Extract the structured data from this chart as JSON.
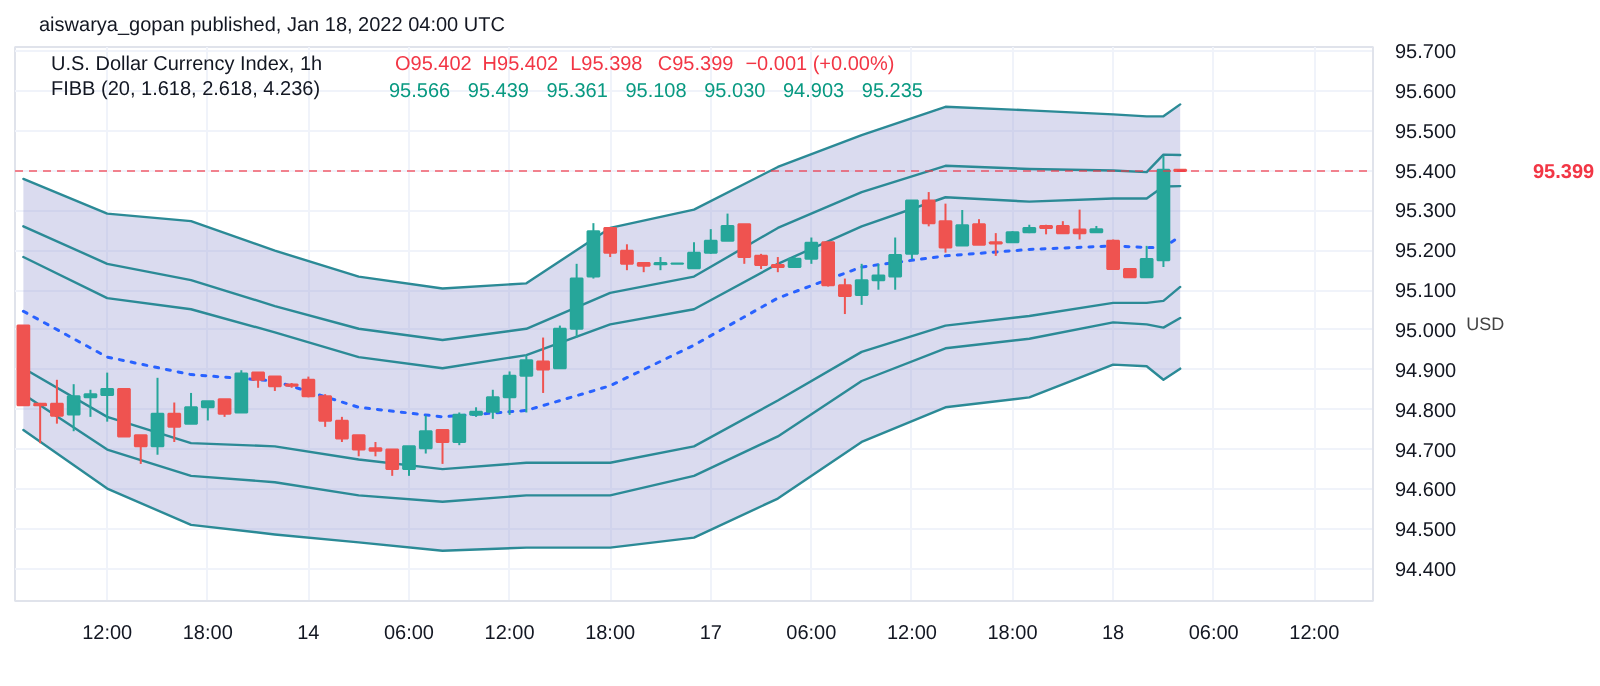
{
  "chart_data": {
    "type": "candlestick",
    "title": "U.S. Dollar Currency Index, 1h",
    "annotations": [
      "aiswarya_gopan published, Jan 18, 2022 04:00 UTC",
      "O95.402",
      "H95.402",
      "L95.398",
      "C95.399",
      "−0.001 (+0.00%)",
      "FIBB (20, 1.618, 2.618, 4.236)",
      "95.566",
      "95.439",
      "95.361",
      "95.108",
      "95.030",
      "94.903",
      "95.235"
    ],
    "ylabel": "USD",
    "categories": [
      null,
      null,
      null,
      null,
      null,
      "12:00",
      null,
      null,
      null,
      null,
      null,
      "18:00",
      null,
      null,
      null,
      null,
      null,
      "14",
      null,
      null,
      null,
      null,
      null,
      "06:00",
      null,
      null,
      null,
      null,
      null,
      "12:00",
      null,
      null,
      null,
      null,
      null,
      "18:00",
      null,
      null,
      null,
      null,
      null,
      "17",
      null,
      null,
      null,
      null,
      null,
      "06:00",
      null,
      null,
      null,
      null,
      null,
      "12:00",
      null,
      null,
      null,
      null,
      null,
      "18:00",
      null,
      null,
      null,
      null,
      null,
      "18",
      null,
      null,
      null,
      null,
      null,
      "06:00",
      null,
      null,
      null,
      null,
      null,
      "12:00",
      null,
      null,
      null
    ],
    "ohlc": [
      [
        95.011,
        95.011,
        94.811,
        94.811
      ],
      [
        94.815,
        94.817,
        94.716,
        94.811
      ],
      [
        94.815,
        94.875,
        94.765,
        94.785
      ],
      [
        94.788,
        94.864,
        94.746,
        94.834
      ],
      [
        94.831,
        94.85,
        94.782,
        94.839
      ],
      [
        94.837,
        94.893,
        94.77,
        94.852
      ],
      [
        94.852,
        94.852,
        94.733,
        94.733
      ],
      [
        94.736,
        94.736,
        94.664,
        94.708
      ],
      [
        94.708,
        94.88,
        94.687,
        94.79
      ],
      [
        94.79,
        94.818,
        94.719,
        94.757
      ],
      [
        94.765,
        94.842,
        94.765,
        94.806
      ],
      [
        94.806,
        94.821,
        94.773,
        94.821
      ],
      [
        94.826,
        94.826,
        94.782,
        94.79
      ],
      [
        94.793,
        94.899,
        94.793,
        94.891
      ],
      [
        94.893,
        94.893,
        94.855,
        94.875
      ],
      [
        94.883,
        94.883,
        94.847,
        94.859
      ],
      [
        94.863,
        94.867,
        94.855,
        94.86
      ],
      [
        94.875,
        94.883,
        94.831,
        94.834
      ],
      [
        94.834,
        94.839,
        94.757,
        94.772
      ],
      [
        94.772,
        94.782,
        94.719,
        94.728
      ],
      [
        94.736,
        94.736,
        94.683,
        94.7
      ],
      [
        94.703,
        94.719,
        94.683,
        94.697
      ],
      [
        94.7,
        94.7,
        94.634,
        94.651
      ],
      [
        94.651,
        94.708,
        94.634,
        94.708
      ],
      [
        94.703,
        94.785,
        94.69,
        94.746
      ],
      [
        94.749,
        94.749,
        94.664,
        94.719
      ],
      [
        94.719,
        94.793,
        94.711,
        94.787
      ],
      [
        94.787,
        94.806,
        94.782,
        94.795
      ],
      [
        94.795,
        94.85,
        94.777,
        94.831
      ],
      [
        94.831,
        94.896,
        94.787,
        94.885
      ],
      [
        94.885,
        94.937,
        94.793,
        94.924
      ],
      [
        94.921,
        94.981,
        94.842,
        94.901
      ],
      [
        94.904,
        95.011,
        94.904,
        95.003
      ],
      [
        95.003,
        95.166,
        94.981,
        95.129
      ],
      [
        95.134,
        95.268,
        95.129,
        95.248
      ],
      [
        95.256,
        95.256,
        95.183,
        95.194
      ],
      [
        95.199,
        95.215,
        95.15,
        95.166
      ],
      [
        95.168,
        95.168,
        95.145,
        95.161
      ],
      [
        95.165,
        95.183,
        95.15,
        95.168
      ],
      [
        95.166,
        95.167,
        95.166,
        95.167
      ],
      [
        95.155,
        95.22,
        95.155,
        95.194
      ],
      [
        95.194,
        95.253,
        95.191,
        95.224
      ],
      [
        95.224,
        95.292,
        95.224,
        95.261
      ],
      [
        95.265,
        95.265,
        95.166,
        95.183
      ],
      [
        95.186,
        95.191,
        95.153,
        95.163
      ],
      [
        95.163,
        95.183,
        95.145,
        95.158
      ],
      [
        95.158,
        95.186,
        95.158,
        95.179
      ],
      [
        95.179,
        95.232,
        95.166,
        95.219
      ],
      [
        95.22,
        95.22,
        95.109,
        95.112
      ],
      [
        95.112,
        95.129,
        95.04,
        95.085
      ],
      [
        95.088,
        95.166,
        95.063,
        95.125
      ],
      [
        95.125,
        95.166,
        95.101,
        95.137
      ],
      [
        95.134,
        95.232,
        95.101,
        95.188
      ],
      [
        95.191,
        95.325,
        95.178,
        95.325
      ],
      [
        95.325,
        95.346,
        95.26,
        95.268
      ],
      [
        95.273,
        95.317,
        95.194,
        95.207
      ],
      [
        95.212,
        95.301,
        95.211,
        95.263
      ],
      [
        95.265,
        95.278,
        95.214,
        95.214
      ],
      [
        95.22,
        95.243,
        95.186,
        95.217
      ],
      [
        95.22,
        95.248,
        95.22,
        95.245
      ],
      [
        95.245,
        95.264,
        95.243,
        95.256
      ],
      [
        95.261,
        95.264,
        95.24,
        95.256
      ],
      [
        95.261,
        95.273,
        95.243,
        95.243
      ],
      [
        95.252,
        95.302,
        95.227,
        95.243
      ],
      [
        95.245,
        95.261,
        95.245,
        95.253
      ],
      [
        95.224,
        95.227,
        95.153,
        95.153
      ],
      [
        95.153,
        95.153,
        95.132,
        95.132
      ],
      [
        95.132,
        95.211,
        95.132,
        95.178
      ],
      [
        95.175,
        95.437,
        95.158,
        95.402
      ],
      [
        95.402,
        95.402,
        95.398,
        95.399
      ],
      null,
      null,
      null,
      null,
      null,
      null,
      null,
      null,
      null,
      null,
      null
    ],
    "colors": [
      "#ef5350",
      "#ef5350",
      "#ef5350",
      "#26a69a",
      "#26a69a",
      "#26a69a",
      "#ef5350",
      "#ef5350",
      "#26a69a",
      "#ef5350",
      "#26a69a",
      "#26a69a",
      "#ef5350",
      "#26a69a",
      "#ef5350",
      "#ef5350",
      "#ef5350",
      "#ef5350",
      "#ef5350",
      "#ef5350",
      "#ef5350",
      "#ef5350",
      "#ef5350",
      "#26a69a",
      "#26a69a",
      "#ef5350",
      "#26a69a",
      "#26a69a",
      "#26a69a",
      "#26a69a",
      "#26a69a",
      "#ef5350",
      "#26a69a",
      "#26a69a",
      "#26a69a",
      "#ef5350",
      "#ef5350",
      "#ef5350",
      "#26a69a",
      "#26a69a",
      "#26a69a",
      "#26a69a",
      "#26a69a",
      "#ef5350",
      "#ef5350",
      "#ef5350",
      "#26a69a",
      "#26a69a",
      "#ef5350",
      "#ef5350",
      "#26a69a",
      "#26a69a",
      "#26a69a",
      "#26a69a",
      "#ef5350",
      "#ef5350",
      "#26a69a",
      "#ef5350",
      "#ef5350",
      "#26a69a",
      "#26a69a",
      "#ef5350",
      "#ef5350",
      "#ef5350",
      "#26a69a",
      "#ef5350",
      "#ef5350",
      "#26a69a",
      "#26a69a",
      "#ef5350",
      null,
      null,
      null,
      null,
      null,
      null,
      null,
      null,
      null,
      null,
      null
    ],
    "series": [
      {
        "type": "line",
        "line_style": "dotted",
        "color": "#2962ff",
        "values": [
          95.047,
          null,
          null,
          null,
          null,
          94.932,
          null,
          null,
          null,
          null,
          94.888,
          null,
          null,
          null,
          null,
          94.872,
          null,
          null,
          null,
          null,
          94.806,
          null,
          null,
          null,
          null,
          94.782,
          null,
          null,
          null,
          null,
          94.798,
          null,
          null,
          null,
          null,
          94.86,
          null,
          null,
          null,
          null,
          94.962,
          null,
          null,
          null,
          null,
          95.08,
          null,
          null,
          null,
          null,
          95.158,
          null,
          null,
          null,
          null,
          95.186,
          null,
          null,
          null,
          null,
          95.202,
          null,
          null,
          null,
          null,
          95.211,
          null,
          95.207,
          95.207,
          95.235,
          null,
          null,
          null,
          null,
          null,
          null,
          null,
          null,
          null,
          null,
          null
        ],
        "lower": [
          94.749,
          null,
          null,
          null,
          null,
          94.602,
          null,
          null,
          null,
          null,
          94.511,
          null,
          null,
          null,
          null,
          94.487,
          null,
          null,
          null,
          null,
          94.467,
          null,
          null,
          null,
          null,
          94.446,
          null,
          null,
          null,
          null,
          94.454,
          null,
          null,
          null,
          null,
          94.454,
          null,
          null,
          null,
          null,
          94.479,
          null,
          null,
          null,
          null,
          94.577,
          null,
          null,
          null,
          null,
          94.719,
          null,
          null,
          null,
          null,
          94.806,
          null,
          null,
          null,
          null,
          94.831,
          null,
          null,
          null,
          null,
          94.913,
          null,
          94.909,
          94.875,
          94.903,
          null,
          null,
          null,
          null,
          null,
          null,
          null,
          null,
          null,
          null,
          null
        ],
        "upper": [
          95.379,
          null,
          null,
          null,
          null,
          95.292,
          null,
          null,
          null,
          null,
          95.273,
          null,
          null,
          null,
          null,
          95.199,
          null,
          null,
          null,
          null,
          95.134,
          null,
          null,
          null,
          null,
          95.104,
          null,
          null,
          null,
          null,
          95.117,
          null,
          null,
          null,
          null,
          95.256,
          null,
          null,
          null,
          null,
          95.302,
          null,
          null,
          null,
          null,
          95.409,
          null,
          null,
          null,
          null,
          95.489,
          null,
          null,
          null,
          null,
          95.56,
          null,
          null,
          null,
          null,
          95.551,
          null,
          null,
          null,
          null,
          95.541,
          null,
          95.536,
          95.536,
          95.566,
          null,
          null,
          null,
          null,
          null,
          null,
          null,
          null,
          null,
          null,
          null
        ]
      },
      {
        "type": "line",
        "color": "#2b8a96",
        "values": [
          95.379,
          null,
          null,
          null,
          null,
          95.292,
          null,
          null,
          null,
          null,
          95.273,
          null,
          null,
          null,
          null,
          95.199,
          null,
          null,
          null,
          null,
          95.134,
          null,
          null,
          null,
          null,
          95.104,
          null,
          null,
          null,
          null,
          95.117,
          null,
          null,
          null,
          null,
          95.256,
          null,
          null,
          null,
          null,
          95.302,
          null,
          null,
          null,
          null,
          95.409,
          null,
          null,
          null,
          null,
          95.489,
          null,
          null,
          null,
          null,
          95.56,
          null,
          null,
          null,
          null,
          95.551,
          null,
          null,
          null,
          null,
          95.541,
          null,
          95.536,
          95.536,
          95.566,
          null,
          null,
          null,
          null,
          null,
          null,
          null,
          null,
          null,
          null,
          null
        ]
      },
      {
        "type": "line",
        "color": "#2b8a96",
        "values": [
          95.26,
          null,
          null,
          null,
          null,
          95.166,
          null,
          null,
          null,
          null,
          95.125,
          null,
          null,
          null,
          null,
          95.06,
          null,
          null,
          null,
          null,
          95.003,
          null,
          null,
          null,
          null,
          94.975,
          null,
          null,
          null,
          null,
          95.003,
          null,
          null,
          null,
          null,
          95.093,
          null,
          null,
          null,
          null,
          95.134,
          null,
          null,
          null,
          null,
          95.256,
          null,
          null,
          null,
          null,
          95.346,
          null,
          null,
          null,
          null,
          95.412,
          null,
          null,
          null,
          null,
          95.404,
          null,
          null,
          null,
          null,
          95.4,
          null,
          95.396,
          95.44,
          95.439,
          null,
          null,
          null,
          null,
          null,
          null,
          null,
          null,
          null,
          null,
          null
        ]
      },
      {
        "type": "line",
        "color": "#2b8a96",
        "values": [
          95.183,
          null,
          null,
          null,
          null,
          95.08,
          null,
          null,
          null,
          null,
          95.052,
          null,
          null,
          null,
          null,
          94.994,
          null,
          null,
          null,
          null,
          94.932,
          null,
          null,
          null,
          null,
          94.904,
          null,
          null,
          null,
          null,
          94.937,
          null,
          null,
          null,
          null,
          95.014,
          null,
          null,
          null,
          null,
          95.052,
          null,
          null,
          null,
          null,
          95.166,
          null,
          null,
          null,
          null,
          95.26,
          null,
          null,
          null,
          null,
          95.333,
          null,
          null,
          null,
          null,
          95.322,
          null,
          null,
          null,
          null,
          95.33,
          null,
          95.33,
          95.36,
          95.361,
          null,
          null,
          null,
          null,
          null,
          null,
          null,
          null,
          null,
          null,
          null
        ]
      },
      {
        "type": "line",
        "color": "#2b8a96",
        "values": [
          94.904,
          null,
          null,
          null,
          null,
          94.782,
          null,
          null,
          null,
          null,
          94.716,
          null,
          null,
          null,
          null,
          94.708,
          null,
          null,
          null,
          null,
          94.675,
          null,
          null,
          null,
          null,
          94.651,
          null,
          null,
          null,
          null,
          94.667,
          null,
          null,
          null,
          null,
          94.667,
          null,
          null,
          null,
          null,
          94.708,
          null,
          null,
          null,
          null,
          94.823,
          null,
          null,
          null,
          null,
          94.945,
          null,
          null,
          null,
          null,
          95.011,
          null,
          null,
          null,
          null,
          95.035,
          null,
          null,
          null,
          null,
          95.068,
          null,
          95.068,
          95.073,
          95.108,
          null,
          null,
          null,
          null,
          null,
          null,
          null,
          null,
          null,
          null,
          null
        ]
      },
      {
        "type": "line",
        "color": "#2b8a96",
        "values": [
          94.839,
          null,
          null,
          null,
          null,
          94.7,
          null,
          null,
          null,
          null,
          94.634,
          null,
          null,
          null,
          null,
          94.618,
          null,
          null,
          null,
          null,
          94.585,
          null,
          null,
          null,
          null,
          94.569,
          null,
          null,
          null,
          null,
          94.585,
          null,
          null,
          null,
          null,
          94.585,
          null,
          null,
          null,
          null,
          94.634,
          null,
          null,
          null,
          null,
          94.733,
          null,
          null,
          null,
          null,
          94.872,
          null,
          null,
          null,
          null,
          94.954,
          null,
          null,
          null,
          null,
          94.978,
          null,
          null,
          null,
          null,
          95.019,
          null,
          95.014,
          95.006,
          95.03,
          null,
          null,
          null,
          null,
          null,
          null,
          null,
          null,
          null,
          null,
          null
        ]
      },
      {
        "type": "line",
        "color": "#2b8a96",
        "values": [
          94.749,
          null,
          null,
          null,
          null,
          94.602,
          null,
          null,
          null,
          null,
          94.511,
          null,
          null,
          null,
          null,
          94.487,
          null,
          null,
          null,
          null,
          94.467,
          null,
          null,
          null,
          null,
          94.446,
          null,
          null,
          null,
          null,
          94.454,
          null,
          null,
          null,
          null,
          94.454,
          null,
          null,
          null,
          null,
          94.479,
          null,
          null,
          null,
          null,
          94.577,
          null,
          null,
          null,
          null,
          94.719,
          null,
          null,
          null,
          null,
          94.806,
          null,
          null,
          null,
          null,
          94.831,
          null,
          null,
          null,
          null,
          94.913,
          null,
          94.909,
          94.875,
          94.903,
          null,
          null,
          null,
          null,
          null,
          null,
          null,
          null,
          null,
          null,
          null
        ]
      }
    ],
    "ylim": [
      94.32,
      95.71
    ],
    "yticks": [
      {
        "value": 94.4,
        "label": "94.400"
      },
      {
        "value": 94.5,
        "label": "94.500"
      },
      {
        "value": 94.6,
        "label": "94.600"
      },
      {
        "value": 94.7,
        "label": "94.700"
      },
      {
        "value": 94.8,
        "label": "94.800"
      },
      {
        "value": 94.9,
        "label": "94.900"
      },
      {
        "value": 95.0,
        "label": "95.000"
      },
      {
        "value": 95.1,
        "label": "95.100"
      },
      {
        "value": 95.2,
        "label": "95.200"
      },
      {
        "value": 95.3,
        "label": "95.300"
      },
      {
        "value": 95.4,
        "label": "95.400"
      },
      {
        "value": 95.5,
        "label": "95.500"
      },
      {
        "value": 95.6,
        "label": "95.600"
      },
      {
        "value": 95.7,
        "label": "95.700"
      }
    ],
    "ref_lines": [
      {
        "axis": "y",
        "value": 95.399,
        "label": "95.399",
        "color": "#f23645",
        "line_style": "dashed"
      }
    ],
    "grid": true
  }
}
